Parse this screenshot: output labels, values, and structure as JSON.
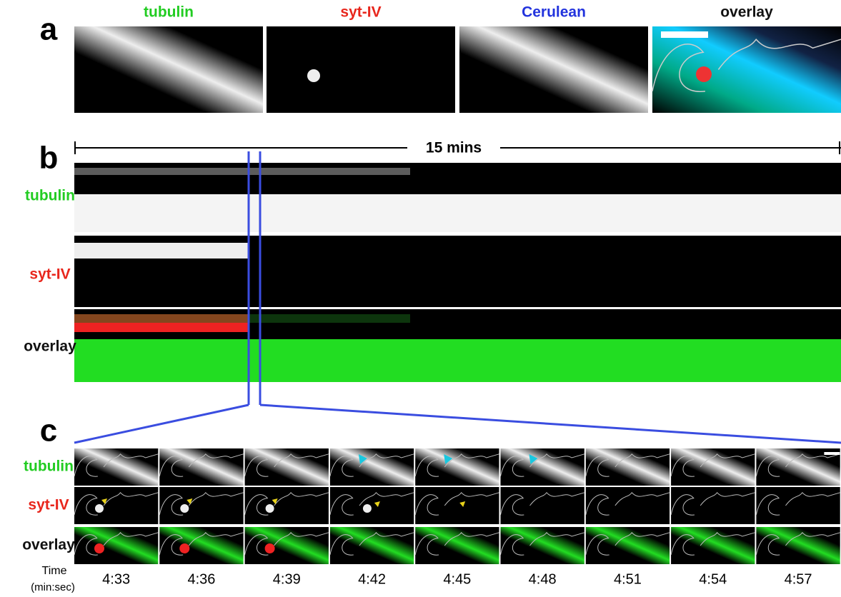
{
  "panel_a": {
    "label": "a",
    "channels": [
      "tubulin",
      "syt-IV",
      "Cerulean",
      "overlay"
    ]
  },
  "panel_b": {
    "label": "b",
    "duration": "15 mins",
    "rows": [
      "tubulin",
      "syt-IV",
      "overlay"
    ]
  },
  "panel_c": {
    "label": "c",
    "rows": [
      "tubulin",
      "syt-IV",
      "overlay"
    ],
    "time_label": "Time",
    "time_unit": "(min:sec)",
    "times": [
      "4:33",
      "4:36",
      "4:39",
      "4:42",
      "4:45",
      "4:48",
      "4:51",
      "4:54",
      "4:57"
    ]
  }
}
